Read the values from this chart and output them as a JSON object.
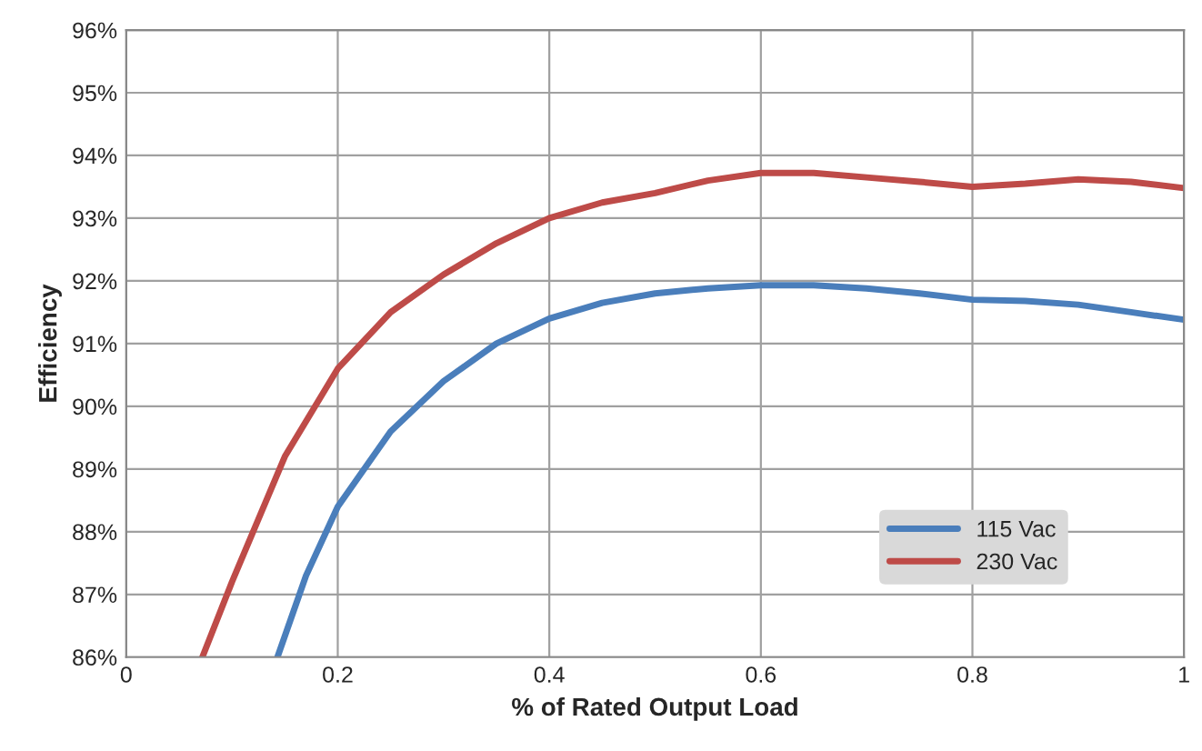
{
  "chart_data": {
    "type": "line",
    "xlabel": "% of Rated Output Load",
    "ylabel": "Efficiency",
    "xlim": [
      0,
      1
    ],
    "xticks": [
      {
        "value": 0,
        "label": "0"
      },
      0.2,
      0.4,
      0.6,
      0.8,
      {
        "value": 1,
        "label": "1"
      }
    ],
    "ylim": [
      86,
      96
    ],
    "yticks": [
      {
        "value": 86,
        "label": "86%"
      },
      {
        "value": 87,
        "label": "87%"
      },
      {
        "value": 88,
        "label": "88%"
      },
      {
        "value": 89,
        "label": "89%"
      },
      {
        "value": 90,
        "label": "90%"
      },
      {
        "value": 91,
        "label": "91%"
      },
      {
        "value": 92,
        "label": "92%"
      },
      {
        "value": 93,
        "label": "93%"
      },
      {
        "value": 94,
        "label": "94%"
      },
      {
        "value": 95,
        "label": "95%"
      },
      {
        "value": 96,
        "label": "96%"
      }
    ],
    "grid": true,
    "legend": "bottom right",
    "marker": "none",
    "line_style": "solid",
    "series": [
      {
        "name": "115 Vac",
        "color": "#4a7ebb",
        "x": [
          0.143,
          0.17,
          0.2,
          0.25,
          0.3,
          0.35,
          0.4,
          0.45,
          0.5,
          0.55,
          0.6,
          0.65,
          0.7,
          0.75,
          0.8,
          0.85,
          0.9,
          0.95,
          1.0
        ],
        "values": [
          86,
          87.3,
          88.4,
          89.6,
          90.4,
          91.0,
          91.4,
          91.65,
          91.8,
          91.88,
          91.93,
          91.93,
          91.88,
          91.8,
          91.7,
          91.68,
          91.62,
          91.5,
          91.38
        ]
      },
      {
        "name": "230 Vac",
        "color": "#be4b48",
        "x": [
          0.072,
          0.1,
          0.15,
          0.2,
          0.25,
          0.3,
          0.35,
          0.4,
          0.45,
          0.5,
          0.55,
          0.6,
          0.65,
          0.7,
          0.75,
          0.8,
          0.85,
          0.9,
          0.95,
          1.0
        ],
        "values": [
          86,
          87.2,
          89.2,
          90.6,
          91.5,
          92.1,
          92.6,
          93.0,
          93.25,
          93.4,
          93.6,
          93.72,
          93.72,
          93.65,
          93.58,
          93.5,
          93.55,
          93.62,
          93.58,
          93.48
        ]
      }
    ]
  }
}
